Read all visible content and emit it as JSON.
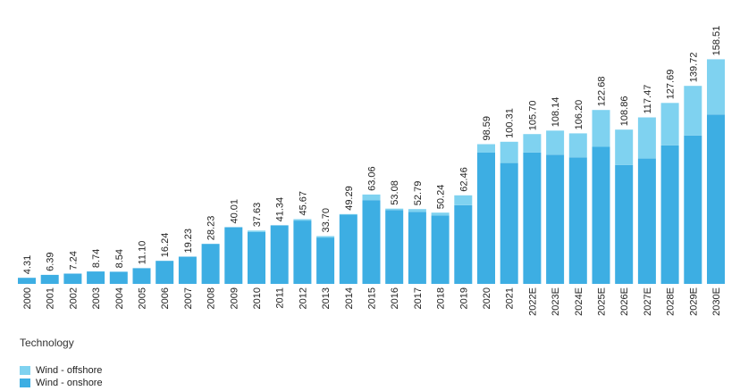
{
  "chart_data": {
    "type": "bar",
    "stacked": true,
    "categories": [
      "2000",
      "2001",
      "2002",
      "2003",
      "2004",
      "2005",
      "2006",
      "2007",
      "2008",
      "2009",
      "2010",
      "2011",
      "2012",
      "2013",
      "2014",
      "2015",
      "2016",
      "2017",
      "2018",
      "2019",
      "2020",
      "2021",
      "2022E",
      "2023E",
      "2024E",
      "2025E",
      "2026E",
      "2027E",
      "2028E",
      "2029E",
      "2030E"
    ],
    "series": [
      {
        "name": "Wind - onshore",
        "color": "#3daee3",
        "values": [
          4.31,
          6.39,
          7.24,
          8.74,
          8.54,
          11.1,
          16.24,
          19.23,
          28.23,
          40.01,
          36.63,
          41.34,
          44.67,
          32.7,
          48.79,
          59.06,
          52.08,
          50.79,
          48.24,
          55.46,
          92.59,
          85.31,
          92.7,
          91.14,
          89.2,
          96.68,
          83.86,
          88.47,
          97.69,
          104.72,
          119.51
        ]
      },
      {
        "name": "Wind - offshore",
        "color": "#7fd2f0",
        "values": [
          0,
          0,
          0,
          0,
          0,
          0,
          0,
          0,
          0,
          0,
          1.0,
          0,
          1.0,
          1.0,
          0.5,
          4.0,
          1.0,
          2.0,
          2.0,
          7.0,
          6.0,
          15.0,
          13.0,
          17.0,
          17.0,
          26.0,
          25.0,
          29.0,
          30.0,
          35.0,
          39.0
        ]
      }
    ],
    "totals": [
      "4.31",
      "6.39",
      "7.24",
      "8.74",
      "8.54",
      "11.10",
      "16.24",
      "19.23",
      "28.23",
      "40.01",
      "37.63",
      "41.34",
      "45.67",
      "33.70",
      "49.29",
      "63.06",
      "53.08",
      "52.79",
      "50.24",
      "62.46",
      "98.59",
      "100.31",
      "105.70",
      "108.14",
      "106.20",
      "122.68",
      "108.86",
      "117.47",
      "127.69",
      "139.72",
      "158.51"
    ],
    "ylim": [
      0,
      160
    ],
    "grid": false,
    "legend": {
      "title": "Technology",
      "position": "bottom-left"
    }
  }
}
